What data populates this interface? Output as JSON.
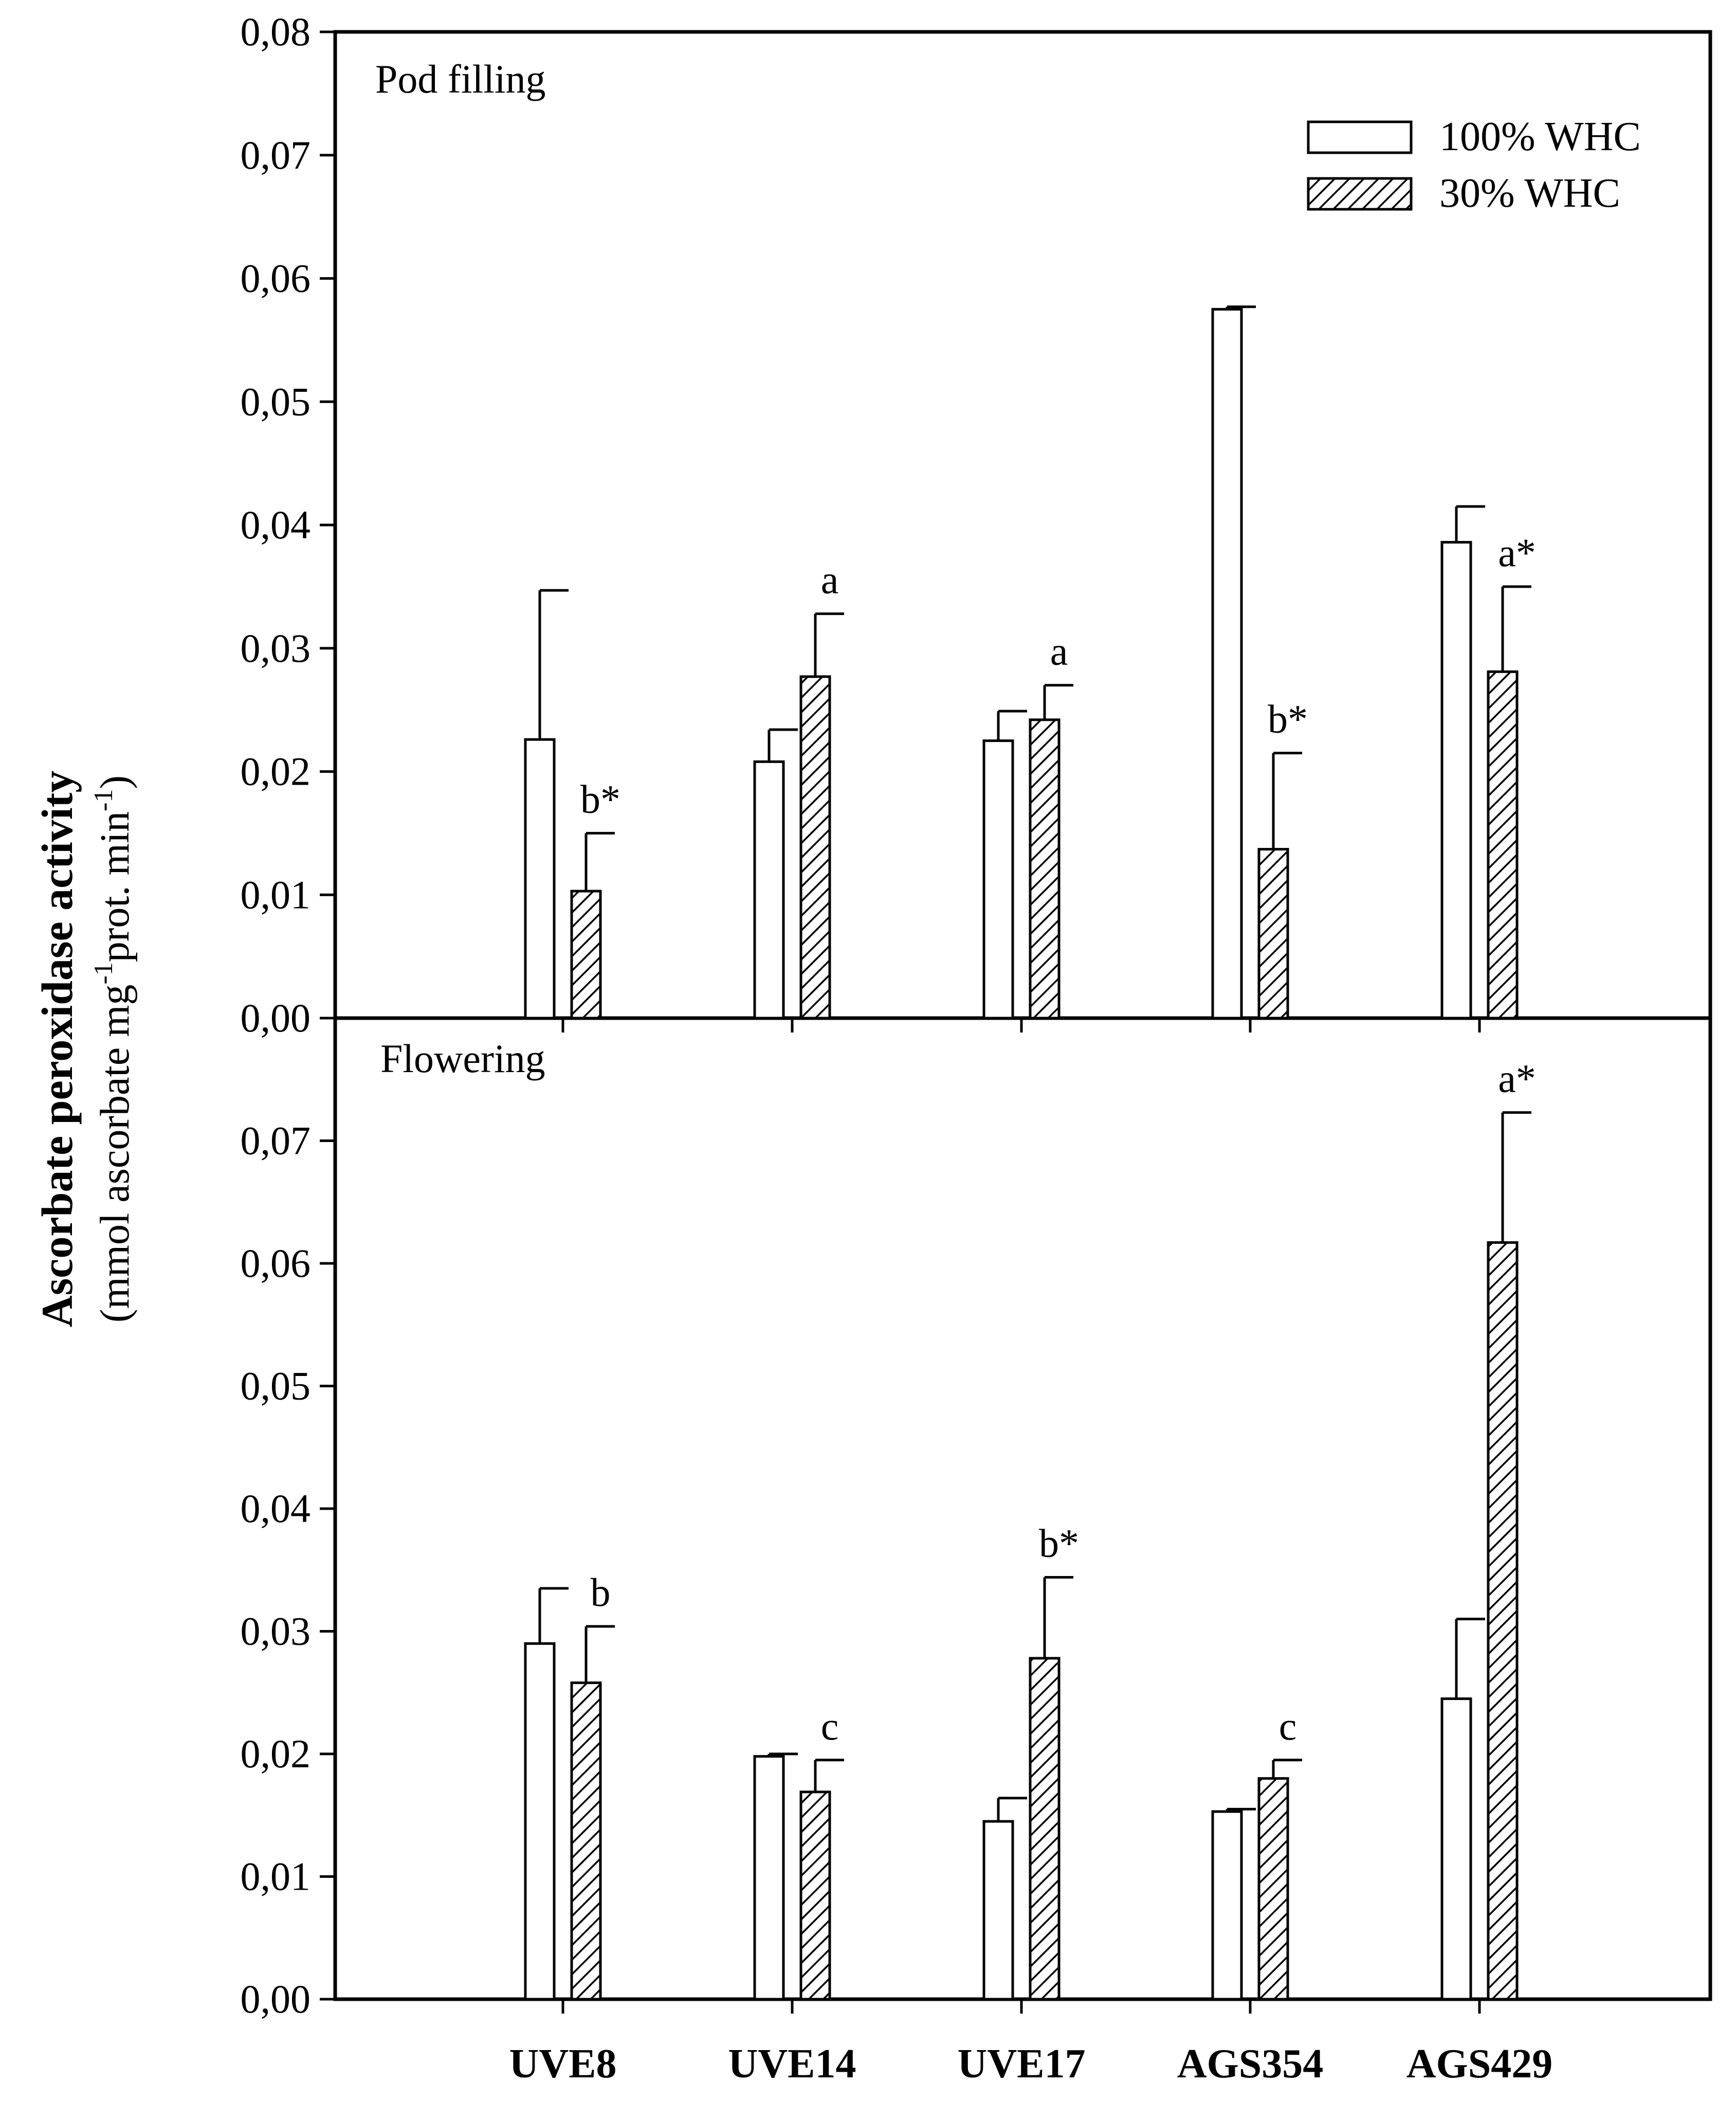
{
  "chart_data": {
    "type": "bar",
    "ylabel": "Ascorbate peroxidase activity",
    "ylabel_unit": {
      "open": "(mmol ascorbate mg",
      "sup1": "-1",
      "mid": "prot. min",
      "sup2": "-1",
      "close": ")"
    },
    "categories": [
      "UVE8",
      "UVE14",
      "UVE17",
      "AGS354",
      "AGS429"
    ],
    "legend": [
      {
        "name": "100% WHC",
        "pattern": "open"
      },
      {
        "name": "30% WHC",
        "pattern": "hatched"
      }
    ],
    "ylim": [
      0,
      0.08
    ],
    "tick_labels": [
      "0,00",
      "0,01",
      "0,02",
      "0,03",
      "0,04",
      "0,05",
      "0,06",
      "0,07",
      "0,08"
    ],
    "panels": [
      {
        "title": "Pod filling",
        "yticks": [
          "0,00",
          "0,01",
          "0,02",
          "0,03",
          "0,04",
          "0,05",
          "0,06",
          "0,07",
          "0,08"
        ],
        "series": [
          {
            "name": "100% WHC",
            "values": [
              0.0226,
              0.0208,
              0.0225,
              0.0575,
              0.0386
            ],
            "errors": [
              0.0121,
              0.0026,
              0.0024,
              0.0002,
              0.0029
            ]
          },
          {
            "name": "30% WHC",
            "values": [
              0.0103,
              0.0277,
              0.0242,
              0.0137,
              0.0281
            ],
            "errors": [
              0.0047,
              0.0051,
              0.0028,
              0.0078,
              0.0069
            ]
          }
        ],
        "letters": [
          "b*",
          "a",
          "a",
          "b*",
          "a*"
        ]
      },
      {
        "title": "Flowering",
        "yticks": [
          "0,00",
          "0,01",
          "0,02",
          "0,03",
          "0,04",
          "0,05",
          "0,06",
          "0,07"
        ],
        "series": [
          {
            "name": "100% WHC",
            "values": [
              0.029,
              0.0198,
              0.0145,
              0.0153,
              0.0245
            ],
            "errors": [
              0.0045,
              0.0002,
              0.0019,
              0.0002,
              0.0065
            ]
          },
          {
            "name": "30% WHC",
            "values": [
              0.0258,
              0.0169,
              0.0278,
              0.018,
              0.0617
            ],
            "errors": [
              0.0046,
              0.0026,
              0.0066,
              0.0015,
              0.0106
            ]
          }
        ],
        "letters": [
          "b",
          "c",
          "b*",
          "c",
          "a*"
        ]
      }
    ]
  }
}
